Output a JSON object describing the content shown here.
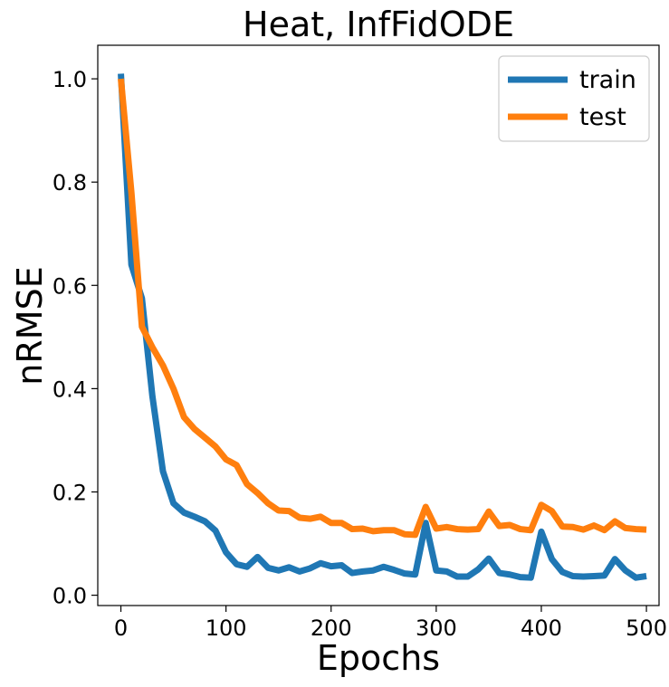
{
  "chart_data": {
    "type": "line",
    "title": "Heat, InfFidODE",
    "xlabel": "Epochs",
    "ylabel": "nRMSE",
    "xlim": [
      -22,
      512
    ],
    "ylim": [
      -0.02,
      1.065
    ],
    "xticks": [
      0,
      100,
      200,
      300,
      400,
      500
    ],
    "yticks": [
      0.0,
      0.2,
      0.4,
      0.6,
      0.8,
      1.0
    ],
    "xtick_labels": [
      "0",
      "100",
      "200",
      "300",
      "400",
      "500"
    ],
    "ytick_labels": [
      "0.0",
      "0.2",
      "0.4",
      "0.6",
      "0.8",
      "1.0"
    ],
    "grid": false,
    "legend_position": "top-right",
    "x": [
      0,
      10,
      20,
      30,
      40,
      50,
      60,
      70,
      80,
      90,
      100,
      110,
      120,
      130,
      140,
      150,
      160,
      170,
      180,
      190,
      200,
      210,
      220,
      230,
      240,
      250,
      260,
      270,
      280,
      290,
      300,
      310,
      320,
      330,
      340,
      350,
      360,
      370,
      380,
      390,
      400,
      410,
      420,
      430,
      440,
      450,
      460,
      470,
      480,
      490,
      500
    ],
    "series": [
      {
        "name": "train",
        "color": "#1f77b4",
        "values": [
          1.01,
          0.64,
          0.575,
          0.385,
          0.24,
          0.178,
          0.16,
          0.152,
          0.143,
          0.125,
          0.083,
          0.06,
          0.055,
          0.074,
          0.053,
          0.048,
          0.054,
          0.046,
          0.052,
          0.062,
          0.056,
          0.058,
          0.043,
          0.046,
          0.048,
          0.055,
          0.049,
          0.042,
          0.04,
          0.14,
          0.048,
          0.046,
          0.036,
          0.036,
          0.05,
          0.071,
          0.043,
          0.04,
          0.035,
          0.034,
          0.123,
          0.07,
          0.045,
          0.037,
          0.036,
          0.037,
          0.038,
          0.07,
          0.048,
          0.034,
          0.037
        ]
      },
      {
        "name": "test",
        "color": "#ff7f0e",
        "values": [
          1.0,
          0.78,
          0.52,
          0.48,
          0.445,
          0.4,
          0.345,
          0.322,
          0.305,
          0.288,
          0.263,
          0.252,
          0.215,
          0.198,
          0.178,
          0.164,
          0.163,
          0.15,
          0.148,
          0.152,
          0.14,
          0.14,
          0.128,
          0.129,
          0.124,
          0.126,
          0.126,
          0.118,
          0.117,
          0.171,
          0.129,
          0.132,
          0.128,
          0.127,
          0.128,
          0.162,
          0.134,
          0.136,
          0.128,
          0.126,
          0.175,
          0.163,
          0.133,
          0.132,
          0.127,
          0.135,
          0.126,
          0.143,
          0.13,
          0.128,
          0.127
        ]
      }
    ]
  }
}
